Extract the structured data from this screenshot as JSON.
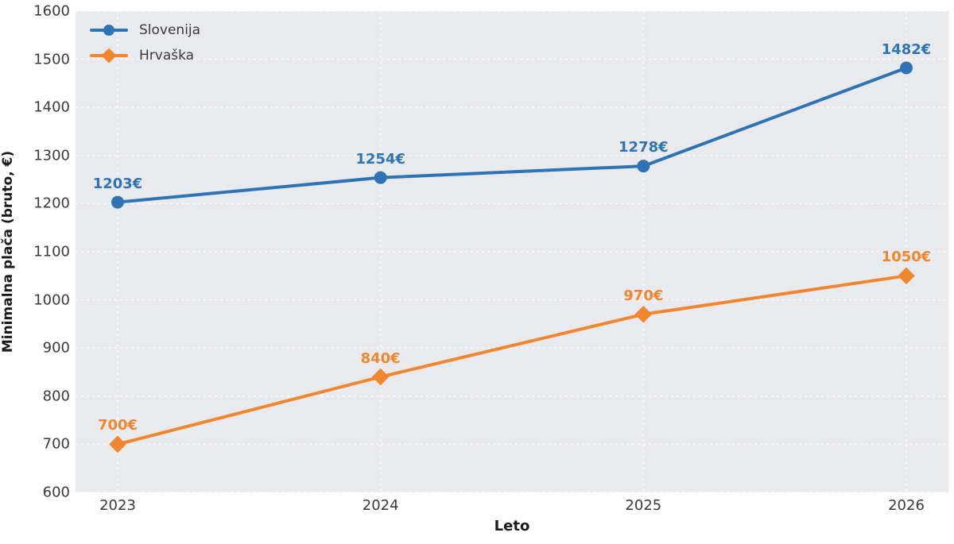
{
  "chart_data": {
    "type": "line",
    "title": "",
    "xlabel": "Leto",
    "ylabel": "Minimalna plača (bruto, €)",
    "categories": [
      "2023",
      "2024",
      "2025",
      "2026"
    ],
    "series": [
      {
        "name": "Slovenija",
        "values": [
          1203,
          1254,
          1278,
          1482
        ],
        "point_labels": [
          "1203€",
          "1254€",
          "1278€",
          "1482€"
        ],
        "color": "#2e74b4",
        "marker": "circle"
      },
      {
        "name": "Hrvaška",
        "values": [
          700,
          840,
          970,
          1050
        ],
        "point_labels": [
          "700€",
          "840€",
          "970€",
          "1050€"
        ],
        "color": "#f0862d",
        "marker": "diamond"
      }
    ],
    "ylim": [
      600,
      1600
    ],
    "yticks": [
      600,
      700,
      800,
      900,
      1000,
      1100,
      1200,
      1300,
      1400,
      1500,
      1600
    ],
    "grid": true,
    "grid_style": "dashed-white",
    "plot_background": "#e9eaee",
    "legend_position": "upper-left"
  }
}
